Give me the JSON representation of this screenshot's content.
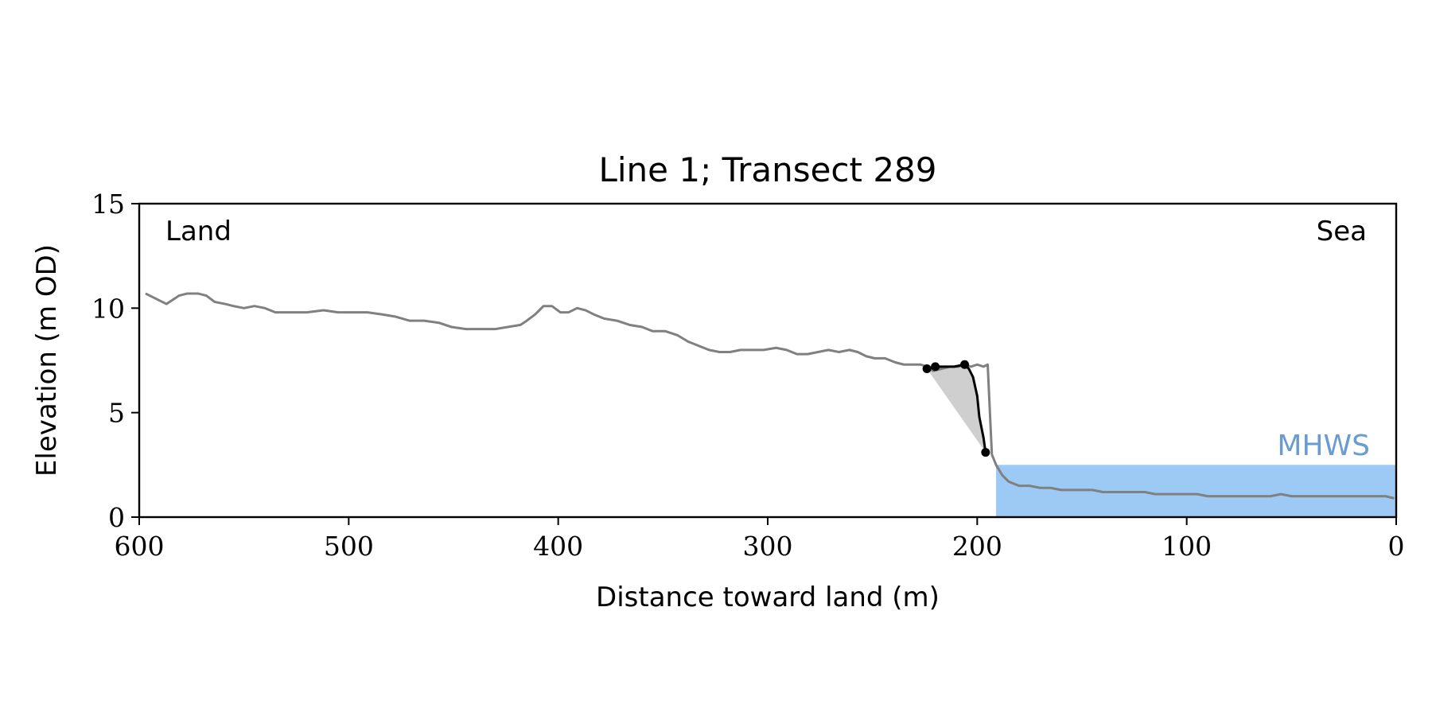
{
  "chart_data": {
    "type": "line",
    "title": "Line 1; Transect 289",
    "xlabel": "Distance toward land (m)",
    "ylabel": "Elevation (m OD)",
    "xlim": [
      600,
      0
    ],
    "ylim": [
      0,
      15
    ],
    "xticks": [
      600,
      500,
      400,
      300,
      200,
      100,
      0
    ],
    "yticks": [
      0,
      5,
      10,
      15
    ],
    "grid": false,
    "annotations": {
      "land": "Land",
      "sea": "Sea",
      "mhws": "MHWS"
    },
    "mhws_level": 2.5,
    "mhws_x_range": [
      0,
      191
    ],
    "colors": {
      "profile": "#808080",
      "cliff": "#000000",
      "fill": "#cfcfcf",
      "mhws": "#9dcaf5",
      "mhws_text": "#6a9cd0"
    },
    "series": [
      {
        "values": [
          [
            597,
            10.7
          ],
          [
            593,
            10.5
          ],
          [
            589,
            10.3
          ],
          [
            587,
            10.2
          ],
          [
            584,
            10.4
          ],
          [
            581,
            10.6
          ],
          [
            577,
            10.7
          ],
          [
            572,
            10.7
          ],
          [
            568,
            10.6
          ],
          [
            564,
            10.3
          ],
          [
            559,
            10.2
          ],
          [
            555,
            10.1
          ],
          [
            550,
            10.0
          ],
          [
            545,
            10.1
          ],
          [
            540,
            10.0
          ],
          [
            535,
            9.8
          ],
          [
            528,
            9.8
          ],
          [
            520,
            9.8
          ],
          [
            512,
            9.9
          ],
          [
            505,
            9.8
          ],
          [
            498,
            9.8
          ],
          [
            491,
            9.8
          ],
          [
            484,
            9.7
          ],
          [
            478,
            9.6
          ],
          [
            471,
            9.4
          ],
          [
            464,
            9.4
          ],
          [
            457,
            9.3
          ],
          [
            451,
            9.1
          ],
          [
            444,
            9.0
          ],
          [
            437,
            9.0
          ],
          [
            430,
            9.0
          ],
          [
            424,
            9.1
          ],
          [
            418,
            9.2
          ],
          [
            415,
            9.4
          ],
          [
            411,
            9.7
          ],
          [
            407,
            10.1
          ],
          [
            403,
            10.1
          ],
          [
            399,
            9.8
          ],
          [
            395,
            9.8
          ],
          [
            391,
            10.0
          ],
          [
            387,
            9.9
          ],
          [
            383,
            9.7
          ],
          [
            378,
            9.5
          ],
          [
            372,
            9.4
          ],
          [
            366,
            9.2
          ],
          [
            360,
            9.1
          ],
          [
            355,
            8.9
          ],
          [
            349,
            8.9
          ],
          [
            343,
            8.7
          ],
          [
            338,
            8.4
          ],
          [
            333,
            8.2
          ],
          [
            328,
            8.0
          ],
          [
            323,
            7.9
          ],
          [
            318,
            7.9
          ],
          [
            313,
            8.0
          ],
          [
            308,
            8.0
          ],
          [
            302,
            8.0
          ],
          [
            296,
            8.1
          ],
          [
            291,
            8.0
          ],
          [
            286,
            7.8
          ],
          [
            281,
            7.8
          ],
          [
            276,
            7.9
          ],
          [
            271,
            8.0
          ],
          [
            266,
            7.9
          ],
          [
            261,
            8.0
          ],
          [
            257,
            7.9
          ],
          [
            253,
            7.7
          ],
          [
            249,
            7.6
          ],
          [
            244,
            7.6
          ],
          [
            239,
            7.4
          ],
          [
            235,
            7.3
          ],
          [
            231,
            7.3
          ],
          [
            227,
            7.3
          ],
          [
            224,
            7.2
          ],
          [
            221,
            7.0
          ],
          [
            217,
            7.1
          ],
          [
            213,
            7.2
          ],
          [
            209,
            7.2
          ],
          [
            206,
            7.3
          ],
          [
            203,
            7.2
          ],
          [
            200,
            7.3
          ],
          [
            197,
            7.2
          ],
          [
            195,
            7.3
          ],
          [
            193,
            3.0
          ],
          [
            191,
            2.5
          ],
          [
            188,
            2.0
          ],
          [
            185,
            1.7
          ],
          [
            180,
            1.5
          ],
          [
            175,
            1.5
          ],
          [
            170,
            1.4
          ],
          [
            165,
            1.4
          ],
          [
            160,
            1.3
          ],
          [
            155,
            1.3
          ],
          [
            150,
            1.3
          ],
          [
            145,
            1.3
          ],
          [
            140,
            1.2
          ],
          [
            135,
            1.2
          ],
          [
            130,
            1.2
          ],
          [
            125,
            1.2
          ],
          [
            120,
            1.2
          ],
          [
            115,
            1.1
          ],
          [
            110,
            1.1
          ],
          [
            105,
            1.1
          ],
          [
            100,
            1.1
          ],
          [
            95,
            1.1
          ],
          [
            90,
            1.0
          ],
          [
            85,
            1.0
          ],
          [
            80,
            1.0
          ],
          [
            75,
            1.0
          ],
          [
            70,
            1.0
          ],
          [
            65,
            1.0
          ],
          [
            60,
            1.0
          ],
          [
            55,
            1.1
          ],
          [
            50,
            1.0
          ],
          [
            45,
            1.0
          ],
          [
            40,
            1.0
          ],
          [
            35,
            1.0
          ],
          [
            30,
            1.0
          ],
          [
            25,
            1.0
          ],
          [
            20,
            1.0
          ],
          [
            15,
            1.0
          ],
          [
            10,
            1.0
          ],
          [
            5,
            1.0
          ],
          [
            1,
            0.9
          ]
        ]
      },
      {
        "values": [
          [
            224,
            7.1
          ],
          [
            220,
            7.2
          ],
          [
            215,
            7.2
          ],
          [
            211,
            7.2
          ],
          [
            206,
            7.3
          ],
          [
            204,
            7.1
          ],
          [
            202,
            6.7
          ],
          [
            200,
            5.8
          ],
          [
            199,
            4.8
          ],
          [
            197,
            3.8
          ],
          [
            196,
            3.1
          ]
        ]
      }
    ],
    "markers": [
      [
        224,
        7.1
      ],
      [
        220,
        7.2
      ],
      [
        206,
        7.3
      ],
      [
        196,
        3.1
      ]
    ]
  }
}
